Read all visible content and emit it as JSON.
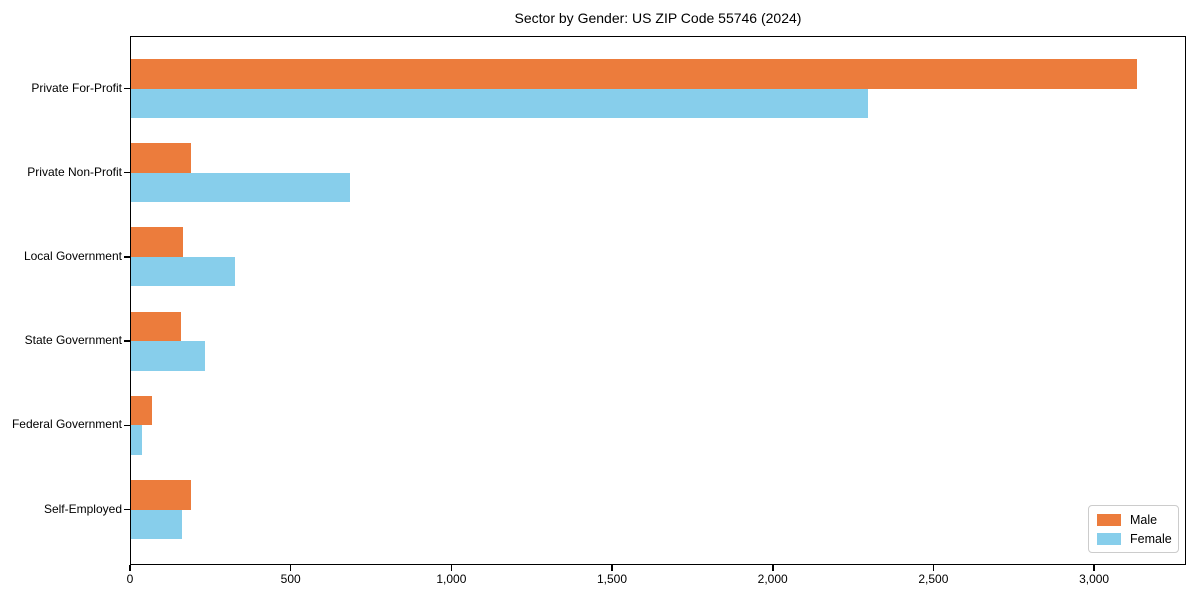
{
  "chart_data": {
    "type": "bar",
    "orientation": "horizontal",
    "title": "Sector by Gender: US ZIP Code 55746 (2024)",
    "categories": [
      "Private For-Profit",
      "Private Non-Profit",
      "Local Government",
      "State Government",
      "Federal Government",
      "Self-Employed"
    ],
    "series": [
      {
        "name": "Male",
        "color": "#EC7C3C",
        "values": [
          3130,
          185,
          163,
          156,
          64,
          185
        ]
      },
      {
        "name": "Female",
        "color": "#87CEEB",
        "values": [
          2292,
          682,
          325,
          231,
          34,
          159
        ]
      }
    ],
    "xlim": [
      0,
      3286
    ],
    "xticks": {
      "values": [
        0,
        500,
        1000,
        1500,
        2000,
        2500,
        3000
      ],
      "labels": [
        "0",
        "500",
        "1,000",
        "1,500",
        "2,000",
        "2,500",
        "3,000"
      ]
    },
    "xlabel": "",
    "ylabel": "",
    "grid": false,
    "legend_position": "lower right",
    "spine_color": "#000000",
    "background_color": "#ffffff"
  }
}
